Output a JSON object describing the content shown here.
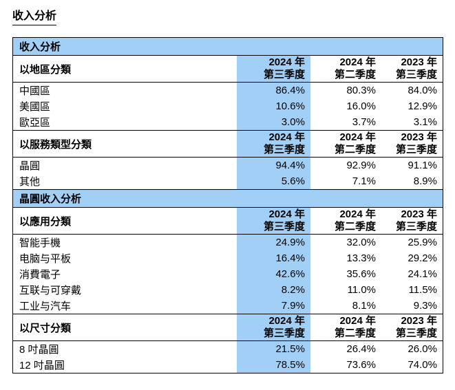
{
  "page": {
    "title": "收入分析"
  },
  "colors": {
    "highlight_blue": "#a2cff5",
    "border": "#000000",
    "text": "#000000"
  },
  "table": {
    "quarter_headers": [
      {
        "line1": "2024 年",
        "line2": "第三季度"
      },
      {
        "line1": "2024 年",
        "line2": "第二季度"
      },
      {
        "line1": "2023 年",
        "line2": "第三季度"
      }
    ],
    "sections": [
      {
        "band": "收入分析",
        "groups": [
          {
            "label": "以地區分類",
            "rows": [
              {
                "label": "中國區",
                "values": [
                  "86.4%",
                  "80.3%",
                  "84.0%"
                ]
              },
              {
                "label": "美國區",
                "values": [
                  "10.6%",
                  "16.0%",
                  "12.9%"
                ]
              },
              {
                "label": "歐亞區",
                "values": [
                  "3.0%",
                  "3.7%",
                  "3.1%"
                ]
              }
            ]
          },
          {
            "label": "以服務類型分類",
            "rows": [
              {
                "label": "晶圓",
                "values": [
                  "94.4%",
                  "92.9%",
                  "91.1%"
                ]
              },
              {
                "label": "其他",
                "values": [
                  "5.6%",
                  "7.1%",
                  "8.9%"
                ]
              }
            ]
          }
        ]
      },
      {
        "band": "晶圓收入分析",
        "groups": [
          {
            "label": "以應用分類",
            "rows": [
              {
                "label": "智能手機",
                "values": [
                  "24.9%",
                  "32.0%",
                  "25.9%"
                ]
              },
              {
                "label": "电脑与平板",
                "values": [
                  "16.4%",
                  "13.3%",
                  "29.2%"
                ]
              },
              {
                "label": "消費電子",
                "values": [
                  "42.6%",
                  "35.6%",
                  "24.1%"
                ]
              },
              {
                "label": "互联与可穿戴",
                "values": [
                  "8.2%",
                  "11.0%",
                  "11.5%"
                ]
              },
              {
                "label": "工业与汽车",
                "values": [
                  "7.9%",
                  "8.1%",
                  "9.3%"
                ]
              }
            ]
          },
          {
            "label": "以尺寸分類",
            "rows": [
              {
                "label": "8 吋晶圓",
                "values": [
                  "21.5%",
                  "26.4%",
                  "26.0%"
                ]
              },
              {
                "label": "12 吋晶圓",
                "values": [
                  "78.5%",
                  "73.6%",
                  "74.0%"
                ]
              }
            ]
          }
        ]
      }
    ]
  }
}
